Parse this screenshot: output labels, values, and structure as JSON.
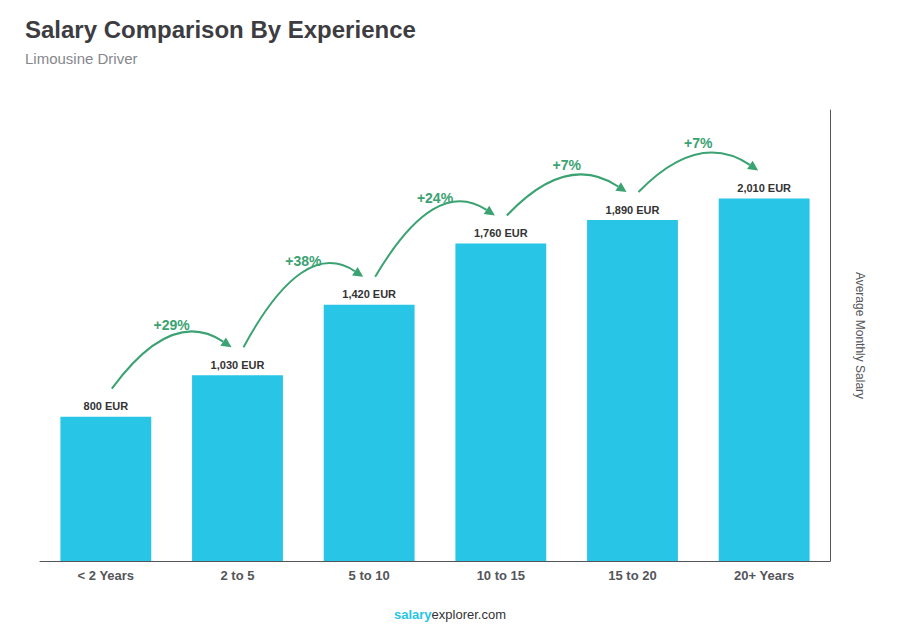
{
  "chart_data": {
    "type": "bar",
    "title": "Salary Comparison By Experience",
    "subtitle": "Limousine Driver",
    "ylabel": "Average Monthly Salary",
    "categories": [
      "< 2 Years",
      "2 to 5",
      "5 to 10",
      "10 to 15",
      "15 to 20",
      "20+ Years"
    ],
    "values": [
      800,
      1030,
      1420,
      1760,
      1890,
      2010
    ],
    "value_labels": [
      "800 EUR",
      "1,030 EUR",
      "1,420 EUR",
      "1,760 EUR",
      "1,890 EUR",
      "2,010 EUR"
    ],
    "data_labels": true,
    "annotations": [
      "+29%",
      "+38%",
      "+24%",
      "+7%",
      "+7%"
    ],
    "color": "#29c5e6",
    "ylim": [
      0,
      2500
    ],
    "grid": false,
    "tick_labels": "x",
    "footer": [
      "salary",
      "explorer.com"
    ]
  }
}
